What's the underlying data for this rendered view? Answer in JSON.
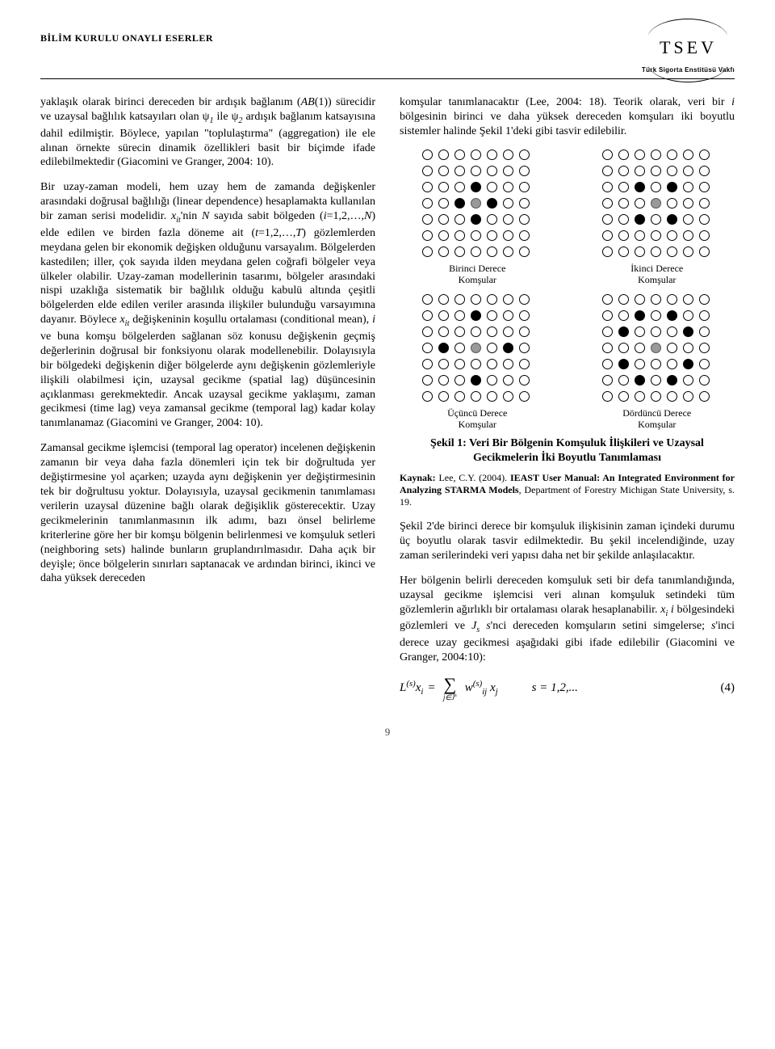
{
  "header": {
    "section_title": "BİLİM KURULU ONAYLI ESERLER",
    "logo_text": "TSEV",
    "logo_subtitle": "Türk Sigorta Enstitüsü Vakfı"
  },
  "left": {
    "p1a": "yaklaşık olarak birinci dereceden bir ardışık bağlanım (",
    "p1b": "(1)) sürecidir ve uzaysal bağlılık katsayıları olan ψ",
    "p1c": " ile ψ",
    "p1d": " ardışık bağlanım katsayısına dahil edilmiştir. Böylece, yapılan \"toplulaştırma\" (aggregation) ile ele alınan örnekte sürecin dinamik özellikleri basit bir biçimde ifade edilebilmektedir (Giacomini ve Granger, 2004: 10).",
    "p2a": "Bir uzay-zaman modeli, hem uzay hem de zamanda değişkenler arasındaki doğrusal bağlılığı (linear dependence) hesaplamakta kullanılan bir zaman serisi modelidir. ",
    "p2b": "'nin ",
    "p2c": " sayıda sabit bölgeden (",
    "p2d": "=1,2,…,",
    "p2e": ") elde edilen ve birden fazla döneme ait (",
    "p2f": "=1,2,…,",
    "p2g": ") gözlemlerden meydana gelen bir ekonomik değişken olduğunu varsayalım. Bölgelerden kastedilen; iller, çok sayıda ilden meydana gelen coğrafi bölgeler veya ülkeler olabilir. Uzay-zaman modellerinin tasarımı, bölgeler arasındaki nispi uzaklığa sistematik bir bağlılık olduğu kabulü altında çeşitli bölgelerden elde edilen veriler arasında ilişkiler bulunduğu varsayımına dayanır. Böylece ",
    "p2h": " değişkeninin koşullu ortalaması (conditional mean), ",
    "p2i": " ve buna komşu bölgelerden sağlanan söz konusu değişkenin geçmiş değerlerinin doğrusal bir fonksiyonu olarak modellenebilir. Dolayısıyla bir bölgedeki değişkenin diğer bölgelerde aynı değişkenin gözlemleriyle ilişkili olabilmesi için, uzaysal gecikme (spatial lag) düşüncesinin açıklanması gerekmektedir. Ancak uzaysal gecikme yaklaşımı, zaman gecikmesi (time lag) veya zamansal gecikme (temporal lag) kadar kolay tanımlanamaz (Giacomini ve Granger, 2004: 10).",
    "p3": "Zamansal gecikme işlemcisi (temporal lag operator) incelenen değişkenin zamanın bir veya daha fazla dönemleri için tek bir doğrultuda yer değiştirmesine yol açarken; uzayda aynı değişkenin yer değiştirmesinin tek bir doğrultusu yoktur. Dolayısıyla, uzaysal gecikmenin tanımlaması verilerin uzaysal düzenine bağlı olarak değişiklik gösterecektir. Uzay gecikmelerinin tanımlanmasının ilk adımı, bazı önsel belirleme kriterlerine göre her bir komşu bölgenin belirlenmesi ve komşuluk setleri (neighboring sets) halinde bunların gruplandırılmasıdır. Daha açık bir deyişle; önce bölgelerin sınırları saptanacak ve ardından birinci, ikinci ve daha yüksek dereceden"
  },
  "right": {
    "p1a": "komşular tanımlanacaktır (Lee, 2004: 18). Teorik olarak, veri bir ",
    "p1b": " bölgesinin birinci ve daha yüksek dereceden komşuları iki boyutlu sistemler halinde Şekil 1'deki gibi tasvir edilebilir.",
    "grid_captions": {
      "g1a": "Birinci Derece",
      "g1b": "Komşular",
      "g2a": "İkinci Derece",
      "g2b": "Komşular",
      "g3a": "Üçüncü Derece",
      "g3b": "Komşular",
      "g4a": "Dördüncü Derece",
      "g4b": "Komşular"
    },
    "fig_title": "Şekil 1: Veri Bir Bölgenin Komşuluk İlişkileri ve Uzaysal Gecikmelerin İki Boyutlu Tanımlaması",
    "source_label": "Kaynak:",
    "source_text1": " Lee, C.Y. (2004). ",
    "source_text2": "IEAST User Manual: An Integrated Environment for Analyzing STARMA Models",
    "source_text3": ", Department of Forestry Michigan State University, s. 19.",
    "p2": "Şekil 2'de birinci derece bir komşuluk ilişkisinin zaman içindeki durumu üç boyutlu olarak tasvir edilmektedir. Bu şekil incelendiğinde, uzay zaman serilerindeki veri yapısı daha net bir şekilde anlaşılacaktır.",
    "p3a": "Her bölgenin belirli dereceden komşuluk seti bir defa tanımlandığında, uzaysal gecikme işlemcisi veri alınan komşuluk setindeki tüm gözlemlerin ağırlıklı bir ortalaması olarak hesaplanabilir. ",
    "p3b": " bölgesindeki gözlemleri ve ",
    "p3c": "'nci dereceden komşuların setini simgelerse; ",
    "p3d": "'inci derece uzay gecikmesi aşağıdaki gibi ifade edilebilir (Giacomini ve Granger, 2004:10):",
    "eq": {
      "lhs_L": "L",
      "lhs_sup": "(s)",
      "lhs_x": "x",
      "lhs_i": "i",
      "eq_sign": " = ",
      "sum_under": "j∈J",
      "sum_under_sup": "s",
      "w": "w",
      "w_sup": "(s)",
      "w_sub": "ij",
      "xj": "x",
      "xj_sub": "j",
      "cond": "s = 1,2,...",
      "num": "(4)"
    }
  },
  "figure": {
    "grids": {
      "g1": [
        [
          0,
          0,
          0,
          0,
          0,
          0,
          0
        ],
        [
          0,
          0,
          0,
          0,
          0,
          0,
          0
        ],
        [
          0,
          0,
          0,
          1,
          0,
          0,
          0
        ],
        [
          0,
          0,
          1,
          2,
          1,
          0,
          0
        ],
        [
          0,
          0,
          0,
          1,
          0,
          0,
          0
        ],
        [
          0,
          0,
          0,
          0,
          0,
          0,
          0
        ],
        [
          0,
          0,
          0,
          0,
          0,
          0,
          0
        ]
      ],
      "g2": [
        [
          0,
          0,
          0,
          0,
          0,
          0,
          0
        ],
        [
          0,
          0,
          0,
          0,
          0,
          0,
          0
        ],
        [
          0,
          0,
          1,
          0,
          1,
          0,
          0
        ],
        [
          0,
          0,
          0,
          2,
          0,
          0,
          0
        ],
        [
          0,
          0,
          1,
          0,
          1,
          0,
          0
        ],
        [
          0,
          0,
          0,
          0,
          0,
          0,
          0
        ],
        [
          0,
          0,
          0,
          0,
          0,
          0,
          0
        ]
      ],
      "g3": [
        [
          0,
          0,
          0,
          0,
          0,
          0,
          0
        ],
        [
          0,
          0,
          0,
          1,
          0,
          0,
          0
        ],
        [
          0,
          0,
          0,
          0,
          0,
          0,
          0
        ],
        [
          0,
          1,
          0,
          2,
          0,
          1,
          0
        ],
        [
          0,
          0,
          0,
          0,
          0,
          0,
          0
        ],
        [
          0,
          0,
          0,
          1,
          0,
          0,
          0
        ],
        [
          0,
          0,
          0,
          0,
          0,
          0,
          0
        ]
      ],
      "g4": [
        [
          0,
          0,
          0,
          0,
          0,
          0,
          0
        ],
        [
          0,
          0,
          1,
          0,
          1,
          0,
          0
        ],
        [
          0,
          1,
          0,
          0,
          0,
          1,
          0
        ],
        [
          0,
          0,
          0,
          2,
          0,
          0,
          0
        ],
        [
          0,
          1,
          0,
          0,
          0,
          1,
          0
        ],
        [
          0,
          0,
          1,
          0,
          1,
          0,
          0
        ],
        [
          0,
          0,
          0,
          0,
          0,
          0,
          0
        ]
      ]
    },
    "legend": {
      "0": "empty-circle",
      "1": "filled-black",
      "2": "filled-gray"
    }
  },
  "page_number": "9",
  "colors": {
    "text": "#000000",
    "background": "#ffffff",
    "gray_fill": "#999999"
  }
}
